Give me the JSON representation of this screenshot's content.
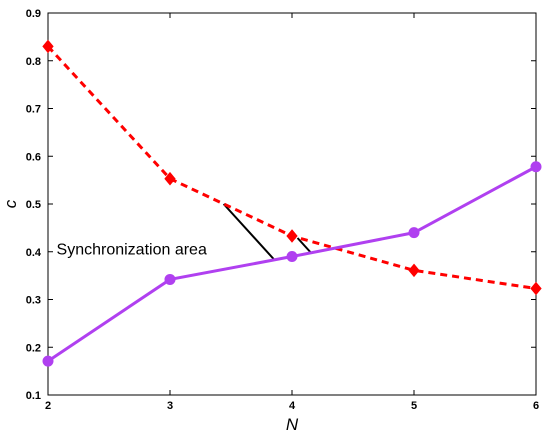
{
  "chart_data": {
    "type": "line",
    "title": "",
    "xlabel": "N",
    "ylabel": "c",
    "xlim": [
      2,
      6
    ],
    "ylim": [
      0.1,
      0.9
    ],
    "x_ticks": [
      2,
      3,
      4,
      5,
      6
    ],
    "y_ticks": [
      0.1,
      0.2,
      0.3,
      0.4,
      0.5,
      0.6,
      0.7,
      0.8,
      0.9
    ],
    "x_tick_labels": [
      "2",
      "3",
      "4",
      "5",
      "6"
    ],
    "y_tick_labels": [
      "0.1",
      "0.2",
      "0.3",
      "0.4",
      "0.5",
      "0.6",
      "0.7",
      "0.8",
      "0.9"
    ],
    "grid": false,
    "x": [
      2,
      3,
      4,
      5,
      6
    ],
    "series": [
      {
        "values": [
          0.83,
          0.553,
          0.433,
          0.361,
          0.323
        ],
        "color": "#ff0000",
        "line_style": "dashed",
        "marker": "diamond"
      },
      {
        "values": [
          0.171,
          0.342,
          0.39,
          0.44,
          0.578
        ],
        "color": "#b040f0",
        "line_style": "solid",
        "marker": "circle"
      }
    ],
    "annotations": [
      {
        "text": "Synchronization area",
        "x": 2.07,
        "y": 0.405
      }
    ],
    "hatch_color": "#000000"
  }
}
